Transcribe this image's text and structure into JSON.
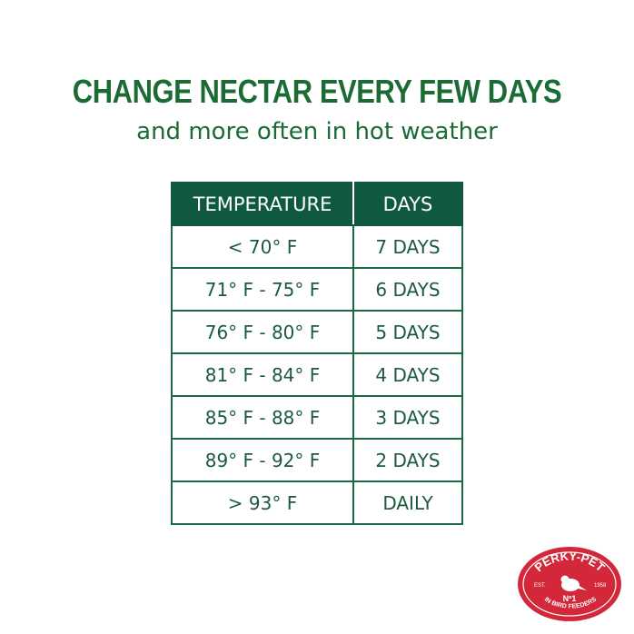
{
  "heading": {
    "title": "CHANGE NECTAR EVERY FEW DAYS",
    "subtitle": "and more often in hot weather"
  },
  "table": {
    "headers": [
      "TEMPERATURE",
      "DAYS"
    ],
    "rows": [
      [
        "< 70° F",
        "7 DAYS"
      ],
      [
        "71° F - 75° F",
        "6 DAYS"
      ],
      [
        "76° F - 80° F",
        "5 DAYS"
      ],
      [
        "81° F - 84° F",
        "4 DAYS"
      ],
      [
        "85° F - 88° F",
        "3 DAYS"
      ],
      [
        "89° F - 92° F",
        "2 DAYS"
      ],
      [
        "> 93° F",
        "DAILY"
      ]
    ]
  },
  "logo": {
    "brand": "PERKY-PET",
    "est": "EST.",
    "year": "1958",
    "tagline": "IN BIRD FEEDERS",
    "rank": "Nº1"
  },
  "colors": {
    "title": "#1b6b35",
    "header": "#0f5a3e",
    "logo": "#d2283a"
  }
}
